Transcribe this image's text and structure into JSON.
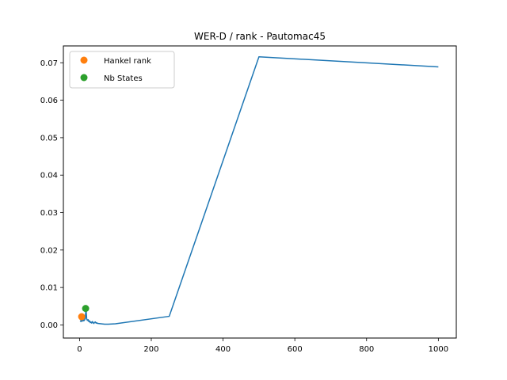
{
  "chart_data": {
    "type": "line",
    "title": "WER-D / rank - Pautomac45",
    "xlabel": "",
    "ylabel": "",
    "xlim": [
      -45,
      1050
    ],
    "ylim": [
      -0.0035,
      0.0745
    ],
    "x_ticks": [
      0,
      200,
      400,
      600,
      800,
      1000
    ],
    "x_tick_labels": [
      "0",
      "200",
      "400",
      "600",
      "800",
      "1000"
    ],
    "y_ticks": [
      0.0,
      0.01,
      0.02,
      0.03,
      0.04,
      0.05,
      0.06,
      0.07
    ],
    "y_tick_labels": [
      "0.00",
      "0.01",
      "0.02",
      "0.03",
      "0.04",
      "0.05",
      "0.06",
      "0.07"
    ],
    "grid": false,
    "legend_position": "upper-left",
    "series": [
      {
        "kind": "line",
        "color": "#1f77b4",
        "x": [
          2,
          4,
          6,
          8,
          10,
          12,
          14,
          16,
          18,
          20,
          22,
          24,
          26,
          28,
          30,
          32,
          34,
          36,
          38,
          40,
          42,
          44,
          46,
          48,
          50,
          60,
          70,
          80,
          100,
          250,
          500,
          1000
        ],
        "y": [
          0.0012,
          0.0009,
          0.0014,
          0.001,
          0.0015,
          0.0011,
          0.0013,
          0.0018,
          0.0045,
          0.0016,
          0.0012,
          0.0014,
          0.0009,
          0.0011,
          0.0006,
          0.0008,
          0.0005,
          0.0009,
          0.0006,
          0.0004,
          0.0007,
          0.0008,
          0.0005,
          0.0006,
          0.0004,
          0.0003,
          0.0002,
          0.0002,
          0.0003,
          0.0023,
          0.0716,
          0.0689
        ]
      },
      {
        "kind": "marker",
        "name": "Hankel rank",
        "color": "#ff7f0e",
        "x": [
          6
        ],
        "y": [
          0.0022
        ]
      },
      {
        "kind": "marker",
        "name": "Nb States",
        "color": "#2ca02c",
        "x": [
          17
        ],
        "y": [
          0.0044
        ]
      }
    ]
  }
}
